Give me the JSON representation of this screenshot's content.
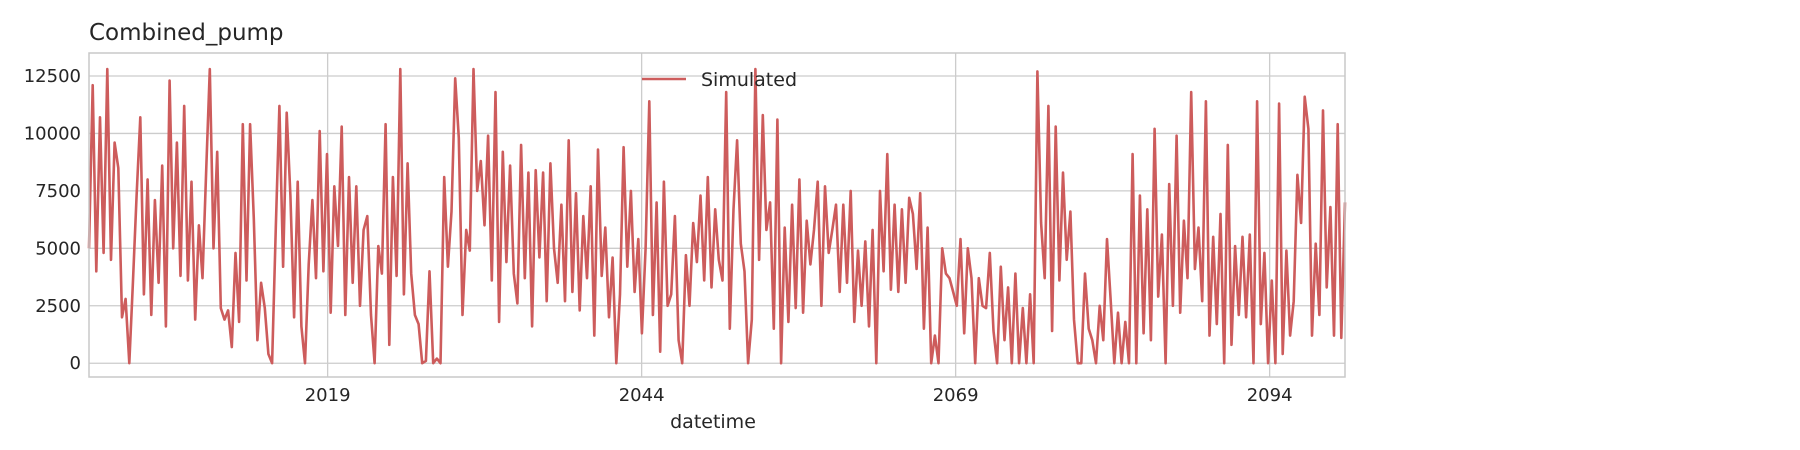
{
  "chart_data": {
    "type": "line",
    "title": "Combined_pump",
    "xlabel": "datetime",
    "ylabel": "",
    "x_ticks": [
      "2019",
      "2044",
      "2069",
      "2094"
    ],
    "x_tick_years": [
      2019,
      2044,
      2069,
      2094
    ],
    "xlim": [
      2000.0,
      2100.0
    ],
    "y_ticks": [
      0,
      2500,
      5000,
      7500,
      10000,
      12500
    ],
    "ylim": [
      -600,
      13500
    ],
    "grid": true,
    "legend_position": "top-center",
    "series": [
      {
        "name": "Simulated",
        "color": "#cd5c5c",
        "x_start": 2000.0,
        "x_end": 2100.0,
        "values": [
          5000,
          12100,
          4000,
          10700,
          4800,
          12800,
          4500,
          9600,
          8500,
          2000,
          2800,
          0,
          3500,
          7300,
          10700,
          3000,
          8000,
          2100,
          7100,
          3500,
          8600,
          1600,
          12300,
          5000,
          9600,
          3800,
          11200,
          3600,
          7900,
          1900,
          6000,
          3700,
          8400,
          12800,
          5000,
          9200,
          2400,
          1900,
          2300,
          700,
          4800,
          1800,
          10400,
          3600,
          10400,
          6300,
          1000,
          3500,
          2400,
          400,
          0,
          5900,
          11200,
          4200,
          10900,
          7300,
          2000,
          7900,
          1600,
          0,
          4300,
          7100,
          3700,
          10100,
          4000,
          9100,
          2200,
          7700,
          5100,
          10300,
          2100,
          8100,
          3500,
          7700,
          2500,
          5800,
          6400,
          2100,
          0,
          5100,
          3900,
          10400,
          800,
          8100,
          3800,
          12800,
          3000,
          8700,
          3900,
          2100,
          1700,
          0,
          100,
          4000,
          0,
          200,
          0,
          8100,
          4200,
          6600,
          12400,
          9800,
          2100,
          5800,
          4900,
          12800,
          7500,
          8800,
          6000,
          9900,
          3600,
          11800,
          1800,
          9200,
          4400,
          8600,
          3900,
          2600,
          9500,
          3700,
          8300,
          1600,
          8400,
          4600,
          8300,
          2700,
          8700,
          5000,
          3500,
          6900,
          2700,
          9700,
          3100,
          7400,
          2300,
          6400,
          3700,
          7700,
          1200,
          9300,
          3800,
          5900,
          2000,
          4600,
          0,
          3000,
          9400,
          4200,
          7500,
          3100,
          5400,
          1300,
          5000,
          11400,
          2100,
          7000,
          500,
          7900,
          2500,
          3000,
          6400,
          1000,
          0,
          4700,
          2500,
          6100,
          4400,
          7300,
          3600,
          8100,
          3300,
          6700,
          4500,
          3600,
          11800,
          1500,
          6700,
          9700,
          5200,
          4000,
          0,
          1900,
          12800,
          4500,
          10800,
          5800,
          7000,
          1500,
          10600,
          0,
          5900,
          1800,
          6900,
          2400,
          8000,
          2200,
          6200,
          4300,
          5800,
          7900,
          2500,
          7700,
          4800,
          5800,
          6900,
          3100,
          6900,
          3500,
          7500,
          1800,
          4900,
          2500,
          5300,
          1600,
          5800,
          0,
          7500,
          4000,
          9100,
          3200,
          6900,
          3100,
          6700,
          3500,
          7200,
          6500,
          4100,
          7400,
          1500,
          5900,
          0,
          1200,
          0,
          5000,
          3900,
          3700,
          3100,
          2500,
          5400,
          1300,
          5000,
          3700,
          0,
          3700,
          2500,
          2400,
          4800,
          1400,
          0,
          4200,
          1000,
          3300,
          0,
          3900,
          0,
          2400,
          0,
          3000,
          0,
          12700,
          6100,
          3700,
          11200,
          1400,
          10300,
          3600,
          8300,
          4500,
          6600,
          1900,
          0,
          0,
          3900,
          1500,
          1000,
          0,
          2500,
          1000,
          5400,
          2800,
          0,
          2200,
          0,
          1800,
          0,
          9100,
          0,
          7300,
          1300,
          6700,
          1000,
          10200,
          2900,
          5600,
          0,
          7800,
          2500,
          9900,
          2200,
          6200,
          3700,
          11800,
          4100,
          5900,
          2700,
          11400,
          1200,
          5500,
          1700,
          6500,
          0,
          9500,
          800,
          5100,
          2100,
          5500,
          2000,
          5600,
          0,
          11400,
          1700,
          4800,
          0,
          3600,
          0,
          11300,
          400,
          4900,
          1200,
          2700,
          8200,
          6100,
          11600,
          10200,
          1200,
          5200,
          2100,
          11000,
          3300,
          6800,
          1200,
          10400,
          1100,
          7000
        ]
      }
    ]
  }
}
